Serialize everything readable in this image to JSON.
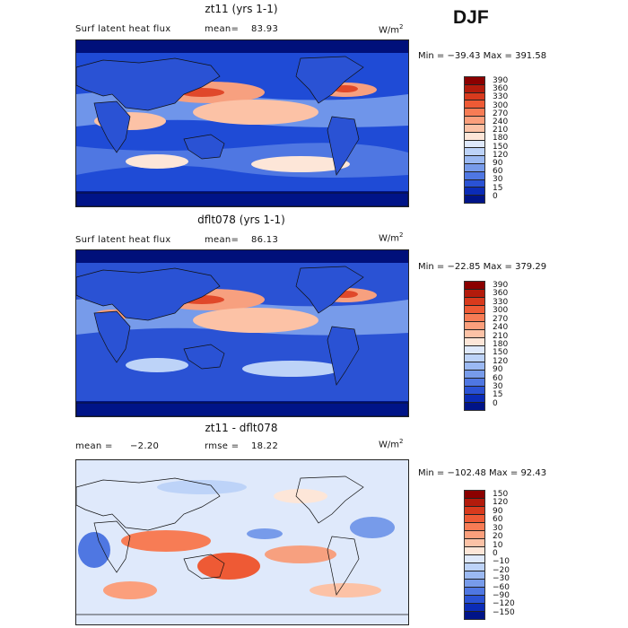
{
  "season": "DJF",
  "panels": [
    {
      "title": "zt11 (yrs 1-1)",
      "field_label": "Surf latent heat flux",
      "stat_label": "mean=",
      "stat_value": "83.93",
      "units": "W/m",
      "units_exp": "2",
      "stats_text": "Min = −39.43 Max = 391.58",
      "colorbar_ticks": [
        "390",
        "360",
        "330",
        "300",
        "270",
        "240",
        "210",
        "180",
        "150",
        "120",
        "90",
        "60",
        "30",
        "15",
        "0"
      ],
      "colorbar_colors": [
        "#8b0000",
        "#b31b0c",
        "#d83a1d",
        "#ee5a35",
        "#f77c55",
        "#fb9f7c",
        "#fcc2a6",
        "#fde6d8",
        "#dfe9fb",
        "#bdd3f8",
        "#9bb9f2",
        "#779bea",
        "#4f77e2",
        "#2a52d4",
        "#0b2cb7",
        "#001488"
      ]
    },
    {
      "title": "dflt078 (yrs 1-1)",
      "field_label": "Surf latent heat flux",
      "stat_label": "mean=",
      "stat_value": "86.13",
      "units": "W/m",
      "units_exp": "2",
      "stats_text": "Min = −22.85 Max = 379.29",
      "colorbar_ticks": [
        "390",
        "360",
        "330",
        "300",
        "270",
        "240",
        "210",
        "180",
        "150",
        "120",
        "90",
        "60",
        "30",
        "15",
        "0"
      ],
      "colorbar_colors": [
        "#8b0000",
        "#b31b0c",
        "#d83a1d",
        "#ee5a35",
        "#f77c55",
        "#fb9f7c",
        "#fcc2a6",
        "#fde6d8",
        "#dfe9fb",
        "#bdd3f8",
        "#9bb9f2",
        "#779bea",
        "#4f77e2",
        "#2a52d4",
        "#0b2cb7",
        "#001488"
      ]
    },
    {
      "title": "zt11 - dflt078",
      "mean_label": "mean =",
      "mean_value": "−2.20",
      "rmse_label": "rmse =",
      "rmse_value": "18.22",
      "units": "W/m",
      "units_exp": "2",
      "stats_text": "Min = −102.48 Max =  92.43",
      "colorbar_ticks": [
        "150",
        "120",
        "90",
        "60",
        "30",
        "20",
        "10",
        "0",
        "−10",
        "−20",
        "−30",
        "−60",
        "−90",
        "−120",
        "−150"
      ],
      "colorbar_colors": [
        "#8b0000",
        "#b31b0c",
        "#d83a1d",
        "#ee5a35",
        "#f77c55",
        "#fb9f7c",
        "#fcc2a6",
        "#fde6d8",
        "#dfe9fb",
        "#bdd3f8",
        "#9bb9f2",
        "#779bea",
        "#4f77e2",
        "#2a52d4",
        "#0b2cb7",
        "#001488"
      ]
    }
  ]
}
